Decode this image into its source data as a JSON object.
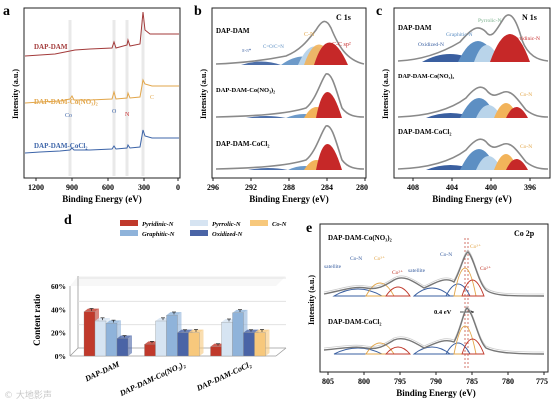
{
  "colors": {
    "axis": "#222222",
    "red": "#c62828",
    "orange": "#f2b35a",
    "lightblue": "#b9d4ea",
    "blue": "#5d8fc3",
    "navy": "#3a5fa0",
    "envelope": "#8a8a8a",
    "xps_a_top": "#a33a3a",
    "xps_a_mid": "#e2a64a",
    "xps_a_bot": "#3c64a8",
    "d_red": "#c0392b",
    "d_lblue": "#d6e4f2",
    "d_orange": "#f7c87c",
    "d_blue": "#8fb3da",
    "d_navy": "#4a64a6"
  },
  "watermark": "© 大地影声",
  "chart_data": [
    {
      "id": "a",
      "panel_label": "a",
      "type": "line",
      "title": "",
      "xlabel": "Binding Energy (eV)",
      "ylabel": "Intensity (a.u.)",
      "xlim": [
        1300,
        0
      ],
      "xticks": [
        1200,
        900,
        600,
        300,
        0
      ],
      "xtick_labels": [
        "1200",
        "900",
        "600",
        "300",
        "0"
      ],
      "series": [
        {
          "name": "DAP-DAM",
          "color_key": "xps_a_top"
        },
        {
          "name": "DAP-DAM-Co(NO₃)₂",
          "color_key": "xps_a_mid"
        },
        {
          "name": "DAP-DAM-CoCl₂",
          "color_key": "xps_a_bot"
        }
      ],
      "peak_labels": [
        "Co",
        "O",
        "N",
        "C"
      ]
    },
    {
      "id": "b",
      "panel_label": "b",
      "type": "line",
      "title": "C 1s",
      "xlabel": "Binding Energy (eV)",
      "ylabel": "Intensity (a.u.)",
      "xlim": [
        296,
        280
      ],
      "xticks": [
        296,
        292,
        288,
        284,
        280
      ],
      "xtick_labels": [
        "296",
        "292",
        "288",
        "284",
        "280"
      ],
      "series": [
        {
          "name": "DAP-DAM"
        },
        {
          "name": "DAP-DAM-Co(NO₃)₂"
        },
        {
          "name": "DAP-DAM-CoCl₂"
        }
      ],
      "components": [
        {
          "name": "π-π*",
          "center": 290.8,
          "color_key": "navy"
        },
        {
          "name": "C=O/C=N",
          "center": 287.4,
          "color_key": "blue"
        },
        {
          "name": "C-C sp³",
          "center": 285.6,
          "color_key": "lightblue"
        },
        {
          "name": "C-N",
          "center": 285.0,
          "color_key": "orange"
        },
        {
          "name": "C-C sp²",
          "center": 284.2,
          "color_key": "red"
        }
      ]
    },
    {
      "id": "c",
      "panel_label": "c",
      "type": "line",
      "title": "N 1s",
      "xlabel": "Binding Energy (eV)",
      "ylabel": "Intensity (a.u.)",
      "xlim": [
        410,
        394
      ],
      "xticks": [
        408,
        404,
        400,
        396
      ],
      "xtick_labels": [
        "408",
        "404",
        "400",
        "396"
      ],
      "series": [
        {
          "name": "DAP-DAM"
        },
        {
          "name": "DAP-DAM-Co(NO₃)₂"
        },
        {
          "name": "DAP-DAM-CoCl₂"
        }
      ],
      "components": [
        {
          "name": "Oxidized-N",
          "center": 403.2,
          "color_key": "navy"
        },
        {
          "name": "Graphitic-N",
          "center": 400.6,
          "color_key": "blue"
        },
        {
          "name": "Pyrrolic-N",
          "center": 399.6,
          "color_key": "lightblue"
        },
        {
          "name": "Co-N",
          "center": 398.7,
          "color_key": "orange"
        },
        {
          "name": "Pyridinic-N",
          "center": 398.0,
          "color_key": "red"
        }
      ],
      "annotations": [
        "Co-N",
        "Co-N"
      ]
    },
    {
      "id": "d",
      "panel_label": "d",
      "type": "bar",
      "title": "",
      "xlabel": "",
      "ylabel": "Content ratio",
      "ylim": [
        0,
        60
      ],
      "yticks": [
        0,
        20,
        40,
        60
      ],
      "ytick_labels": [
        "0%",
        "20%",
        "40%",
        "60%"
      ],
      "categories": [
        "DAP-DAM",
        "DAP-DAM-Co(NO₃)₂",
        "DAP-DAM-CoCl₂"
      ],
      "legend": [
        "Pyridinic-N",
        "Pyrrolic-N",
        "Co-N",
        "Graphitic-N",
        "Oxidized-N"
      ],
      "series": [
        {
          "name": "Pyridinic-N",
          "color_key": "d_red",
          "values": [
            38,
            10,
            8
          ],
          "errors": [
            1.0,
            0.8,
            0.8
          ]
        },
        {
          "name": "Pyrrolic-N",
          "color_key": "d_lblue",
          "values": [
            30,
            30,
            29
          ],
          "errors": [
            1.0,
            1.0,
            1.0
          ]
        },
        {
          "name": "Graphitic-N",
          "color_key": "d_blue",
          "values": [
            28,
            35,
            37
          ],
          "errors": [
            1.0,
            1.0,
            1.0
          ]
        },
        {
          "name": "Oxidized-N",
          "color_key": "d_navy",
          "values": [
            15,
            20,
            20
          ],
          "errors": [
            0.8,
            0.8,
            0.8
          ]
        },
        {
          "name": "Co-N",
          "color_key": "d_orange",
          "values": [
            0,
            20,
            20
          ],
          "errors": [
            0,
            1.0,
            1.0
          ]
        }
      ]
    },
    {
      "id": "e",
      "panel_label": "e",
      "type": "line",
      "title": "Co 2p",
      "xlabel": "Binding Energy (eV)",
      "ylabel": "Intensity (a.u.)",
      "xlim": [
        805,
        775
      ],
      "xticks": [
        805,
        800,
        795,
        790,
        785,
        780,
        775
      ],
      "xtick_labels": [
        "805",
        "800",
        "795",
        "790",
        "785",
        "780",
        "775"
      ],
      "series": [
        {
          "name": "DAP-DAM-Co(NO₃)₂"
        },
        {
          "name": "DAP-DAM-CoCl₂"
        }
      ],
      "annotations": {
        "satellite_1": "satellite",
        "co_n_1": "Co-N",
        "co3_1": "Co³⁺",
        "co2_1": "Co²⁺",
        "satellite_2": "satellite",
        "co_n_2": "Co-N",
        "co3_2": "Co³⁺",
        "co2_2": "Co²⁺",
        "shift": "0.4 eV"
      }
    }
  ]
}
